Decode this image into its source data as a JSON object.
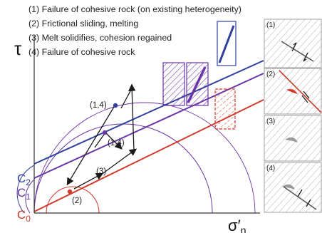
{
  "legend": {
    "items": [
      "(1) Failure of cohesive rock (on existing heterogeneity)",
      "(2) Frictional sliding, melting",
      "(3) Melt solidifies, cohesion regained",
      "(4) Failure of cohesive rock"
    ]
  },
  "axes": {
    "y_label": "τ",
    "x_label_main": "σ′",
    "x_label_sub": "n"
  },
  "intercepts": {
    "c0": {
      "main": "C",
      "sub": "0"
    },
    "c1": {
      "main": "C",
      "sub": "1"
    },
    "c2": {
      "main": "C",
      "sub": "2"
    }
  },
  "points": {
    "p14_upper": "(1,4)",
    "p14_mid": "(1,4)",
    "p3": "(3)",
    "p2": "(2)"
  },
  "panels": {
    "labels": [
      "(1)",
      "(2)",
      "(3)",
      "(4)"
    ]
  },
  "colors": {
    "blue": "#2e3f9e",
    "purple": "#6a35a6",
    "red": "#d13a2a",
    "grey": "#aaaaaa",
    "dark": "#1a1a1a"
  }
}
